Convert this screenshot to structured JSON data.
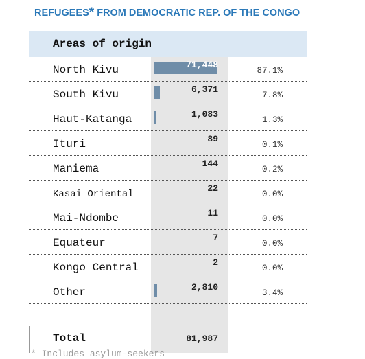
{
  "title": "REFUGEES",
  "title_star": "*",
  "title_rest": " FROM DEMOCRATIC REP. OF THE CONGO",
  "header_label": "Areas of origin",
  "total_label": "Total",
  "total_value": "81,987",
  "footnote": "* Includes asylum-seekers",
  "colors": {
    "title": "#2a78b8",
    "bar": "#6f8da8",
    "header_bg": "#dbe8f4",
    "column_bg": "#e6e6e6"
  },
  "chart_data": {
    "type": "bar",
    "orientation": "horizontal",
    "title": "REFUGEES* FROM DEMOCRATIC REP. OF THE CONGO",
    "header": "Areas of origin",
    "categories": [
      "North Kivu",
      "South Kivu",
      "Haut-Katanga",
      "Ituri",
      "Maniema",
      "Kasai Oriental",
      "Mai-Ndombe",
      "Equateur",
      "Kongo Central",
      "Other"
    ],
    "values": [
      71448,
      6371,
      1083,
      89,
      144,
      22,
      11,
      7,
      2,
      2810
    ],
    "value_labels": [
      "71,448",
      "6,371",
      "1,083",
      "89",
      "144",
      "22",
      "11",
      "7",
      "2",
      "2,810"
    ],
    "percent_labels": [
      "87.1%",
      "7.8%",
      "1.3%",
      "0.1%",
      "0.2%",
      "0.0%",
      "0.0%",
      "0.0%",
      "0.0%",
      "3.4%"
    ],
    "total": 81987,
    "total_label": "81,987",
    "xlim": [
      0,
      71448
    ],
    "grid": false,
    "legend": "none"
  }
}
